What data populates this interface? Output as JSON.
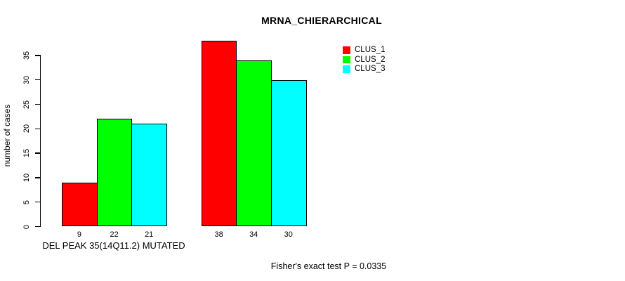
{
  "chart": {
    "title": "MRNA_CHIERARCHICAL",
    "ylabel": "number of cases",
    "group_label": "DEL PEAK 35(14Q11.2) MUTATED",
    "footnote": "Fisher's exact test P = 0.0335"
  },
  "chart_data": {
    "type": "bar",
    "title": "MRNA_CHIERARCHICAL",
    "xlabel": "",
    "ylabel": "number of cases",
    "ylim": [
      0,
      35
    ],
    "yticks": [
      0,
      5,
      10,
      15,
      20,
      25,
      30,
      35
    ],
    "grid": false,
    "grouped": true,
    "categories": [
      "DEL PEAK 35(14Q11.2) MUTATED",
      ""
    ],
    "series": [
      {
        "name": "CLUS_1",
        "color": "#ff0000",
        "values": [
          9,
          38
        ]
      },
      {
        "name": "CLUS_2",
        "color": "#00ff00",
        "values": [
          22,
          34
        ]
      },
      {
        "name": "CLUS_3",
        "color": "#00ffff",
        "values": [
          21,
          30
        ]
      }
    ],
    "bar_value_labels": [
      [
        9,
        22,
        21
      ],
      [
        38,
        34,
        30
      ]
    ],
    "legend_position": "top-right-inside",
    "annotations": [
      "Fisher's exact test P = 0.0335"
    ],
    "colors": {
      "clus_1": "#ff0000",
      "clus_2": "#00ff00",
      "clus_3": "#00ffff",
      "axis": "#000000",
      "background": "#ffffff"
    }
  }
}
